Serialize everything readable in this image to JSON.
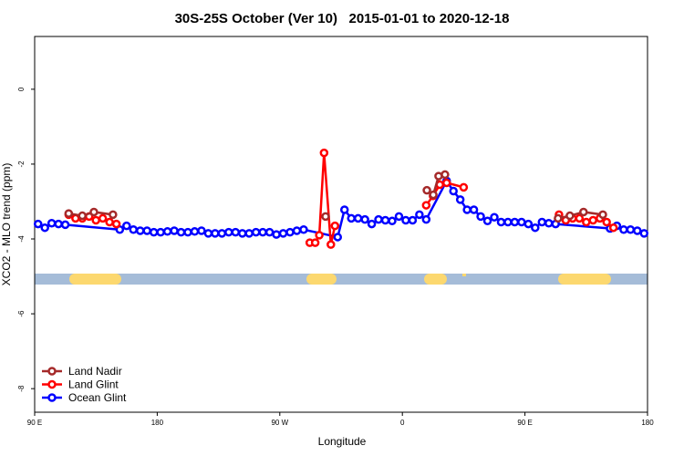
{
  "chart_data": {
    "type": "line",
    "title": "30S-25S October (Ver 10)   2015-01-01 to 2020-12-18",
    "x_label": "Longitude",
    "y_label": "XCO2 - MLO trend (ppm)",
    "xlim": [
      90,
      540
    ],
    "ylim": [
      -8.63,
      1.41
    ],
    "xticks": [
      {
        "value": 90,
        "label": "90 E"
      },
      {
        "value": 180,
        "label": "180"
      },
      {
        "value": 270,
        "label": "90 W"
      },
      {
        "value": 360,
        "label": "0"
      },
      {
        "value": 450,
        "label": "90 E"
      },
      {
        "value": 540,
        "label": "180"
      }
    ],
    "yticks": [
      -8,
      -6,
      -4,
      -2,
      0
    ],
    "legend": "bottom-left",
    "series": [
      {
        "name": "Land Nadir",
        "color": "#a52a2a",
        "x": [
          115,
          125,
          133.5,
          147.5,
          200,
          303.6,
          350,
          378,
          382.7,
          386.6,
          391.3,
          430,
          474.3,
          483,
          493,
          507.2
        ],
        "values": [
          -3.32,
          -3.38,
          -3.28,
          -3.35,
          null,
          -3.4,
          null,
          -2.7,
          -2.82,
          -2.32,
          -2.28,
          null,
          -3.45,
          -3.38,
          -3.28,
          -3.35
        ]
      },
      {
        "name": "Land Glint",
        "color": "#ff0000",
        "x": [
          115,
          120,
          125,
          130,
          135,
          140,
          145,
          150,
          200,
          292,
          296,
          299,
          302.5,
          307.5,
          310.5,
          350,
          377.5,
          382.5,
          387.5,
          392.5,
          405,
          440,
          475,
          480,
          485,
          490,
          495,
          500,
          505,
          510,
          515
        ],
        "values": [
          -3.35,
          -3.45,
          -3.45,
          -3.4,
          -3.5,
          -3.45,
          -3.55,
          -3.6,
          null,
          -4.1,
          -4.1,
          -3.9,
          -1.7,
          -4.15,
          -3.65,
          null,
          -3.1,
          -2.85,
          -2.55,
          -2.5,
          -2.62,
          null,
          -3.35,
          -3.5,
          -3.45,
          -3.45,
          -3.55,
          -3.5,
          -3.45,
          -3.55,
          -3.7
        ]
      },
      {
        "name": "Ocean Glint",
        "color": "#0000ff",
        "x": [
          92.5,
          97.5,
          102.5,
          107.5,
          112.5,
          152.5,
          157.5,
          162.5,
          167.5,
          172.5,
          177.5,
          182.5,
          187.5,
          192.5,
          197.5,
          202.5,
          207.5,
          212.5,
          217.5,
          222.5,
          227.5,
          232.5,
          237.5,
          242.5,
          247.5,
          252.5,
          257.5,
          262.5,
          267.5,
          272.5,
          277.5,
          282.5,
          287.5,
          312.5,
          317.5,
          322.5,
          327.5,
          332.5,
          337.5,
          342.5,
          347.5,
          352.5,
          357.5,
          362.5,
          367.5,
          372.5,
          377.5,
          392.5,
          397.5,
          402.5,
          407.5,
          412.5,
          417.5,
          422.5,
          427.5,
          432.5,
          437.5,
          442.5,
          447.5,
          452.5,
          457.5,
          462.5,
          467.5,
          472.5,
          512.5,
          517.5,
          522.5,
          527.5,
          532.5,
          537.5
        ],
        "values": [
          -3.6,
          -3.7,
          -3.58,
          -3.6,
          -3.62,
          -3.75,
          -3.65,
          -3.75,
          -3.78,
          -3.78,
          -3.82,
          -3.82,
          -3.8,
          -3.78,
          -3.82,
          -3.82,
          -3.8,
          -3.78,
          -3.85,
          -3.85,
          -3.85,
          -3.82,
          -3.82,
          -3.85,
          -3.85,
          -3.82,
          -3.82,
          -3.82,
          -3.88,
          -3.85,
          -3.82,
          -3.78,
          -3.75,
          -3.95,
          -3.22,
          -3.45,
          -3.45,
          -3.48,
          -3.6,
          -3.48,
          -3.5,
          -3.52,
          -3.4,
          -3.5,
          -3.5,
          -3.35,
          -3.48,
          -2.45,
          -2.72,
          -2.95,
          -3.22,
          -3.22,
          -3.4,
          -3.52,
          -3.42,
          -3.55,
          -3.55,
          -3.55,
          -3.55,
          -3.6,
          -3.7,
          -3.55,
          -3.58,
          -3.6,
          -3.72,
          -3.65,
          -3.75,
          -3.75,
          -3.78,
          -3.85
        ]
      }
    ]
  }
}
